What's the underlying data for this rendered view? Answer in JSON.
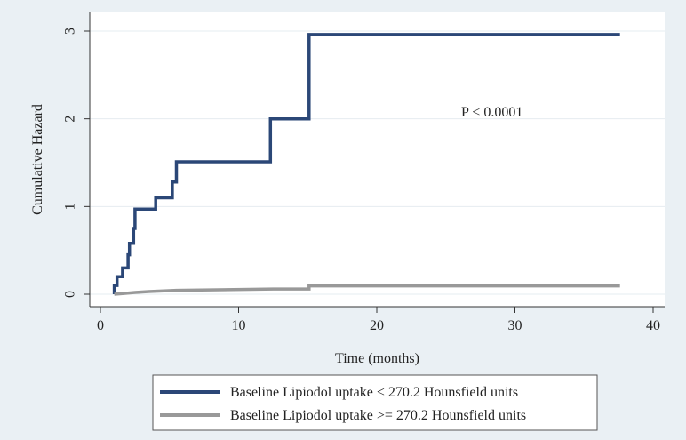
{
  "chart_data": {
    "type": "line",
    "step": true,
    "xlabel": "Time (months)",
    "ylabel": "Cumulative Hazard",
    "xlim": [
      0,
      40
    ],
    "ylim": [
      0,
      3
    ],
    "xticks": [
      0,
      10,
      20,
      30,
      40
    ],
    "yticks": [
      0,
      1,
      2,
      3
    ],
    "grid": true,
    "legend_position": "bottom",
    "annotation": "P < 0.0001",
    "colors": {
      "background": "#eaf0f4",
      "plot_area": "#ffffff",
      "grid": "#e6ecf0",
      "axis": "#333333"
    },
    "series": [
      {
        "name": "Baseline Lipiodol uptake < 270.2 Hounsfield units",
        "color": "#2b4777",
        "points": [
          [
            1.0,
            0.0
          ],
          [
            1.0,
            0.1
          ],
          [
            1.2,
            0.1
          ],
          [
            1.2,
            0.2
          ],
          [
            1.6,
            0.2
          ],
          [
            1.6,
            0.3
          ],
          [
            2.0,
            0.3
          ],
          [
            2.0,
            0.45
          ],
          [
            2.1,
            0.45
          ],
          [
            2.1,
            0.58
          ],
          [
            2.4,
            0.58
          ],
          [
            2.4,
            0.75
          ],
          [
            2.5,
            0.75
          ],
          [
            2.5,
            0.97
          ],
          [
            4.0,
            0.97
          ],
          [
            4.0,
            1.1
          ],
          [
            5.2,
            1.1
          ],
          [
            5.2,
            1.28
          ],
          [
            5.5,
            1.28
          ],
          [
            5.5,
            1.51
          ],
          [
            12.3,
            1.51
          ],
          [
            12.3,
            2.0
          ],
          [
            15.1,
            2.0
          ],
          [
            15.1,
            2.96
          ],
          [
            37.6,
            2.96
          ]
        ]
      },
      {
        "name": "Baseline Lipiodol uptake >= 270.2 Hounsfield units",
        "color": "#999999",
        "points": [
          [
            1.0,
            0.0
          ],
          [
            1.8,
            0.01
          ],
          [
            2.5,
            0.02
          ],
          [
            3.5,
            0.03
          ],
          [
            5.5,
            0.045
          ],
          [
            12.5,
            0.06
          ],
          [
            15.1,
            0.06
          ],
          [
            15.1,
            0.095
          ],
          [
            37.6,
            0.095
          ]
        ]
      }
    ]
  }
}
